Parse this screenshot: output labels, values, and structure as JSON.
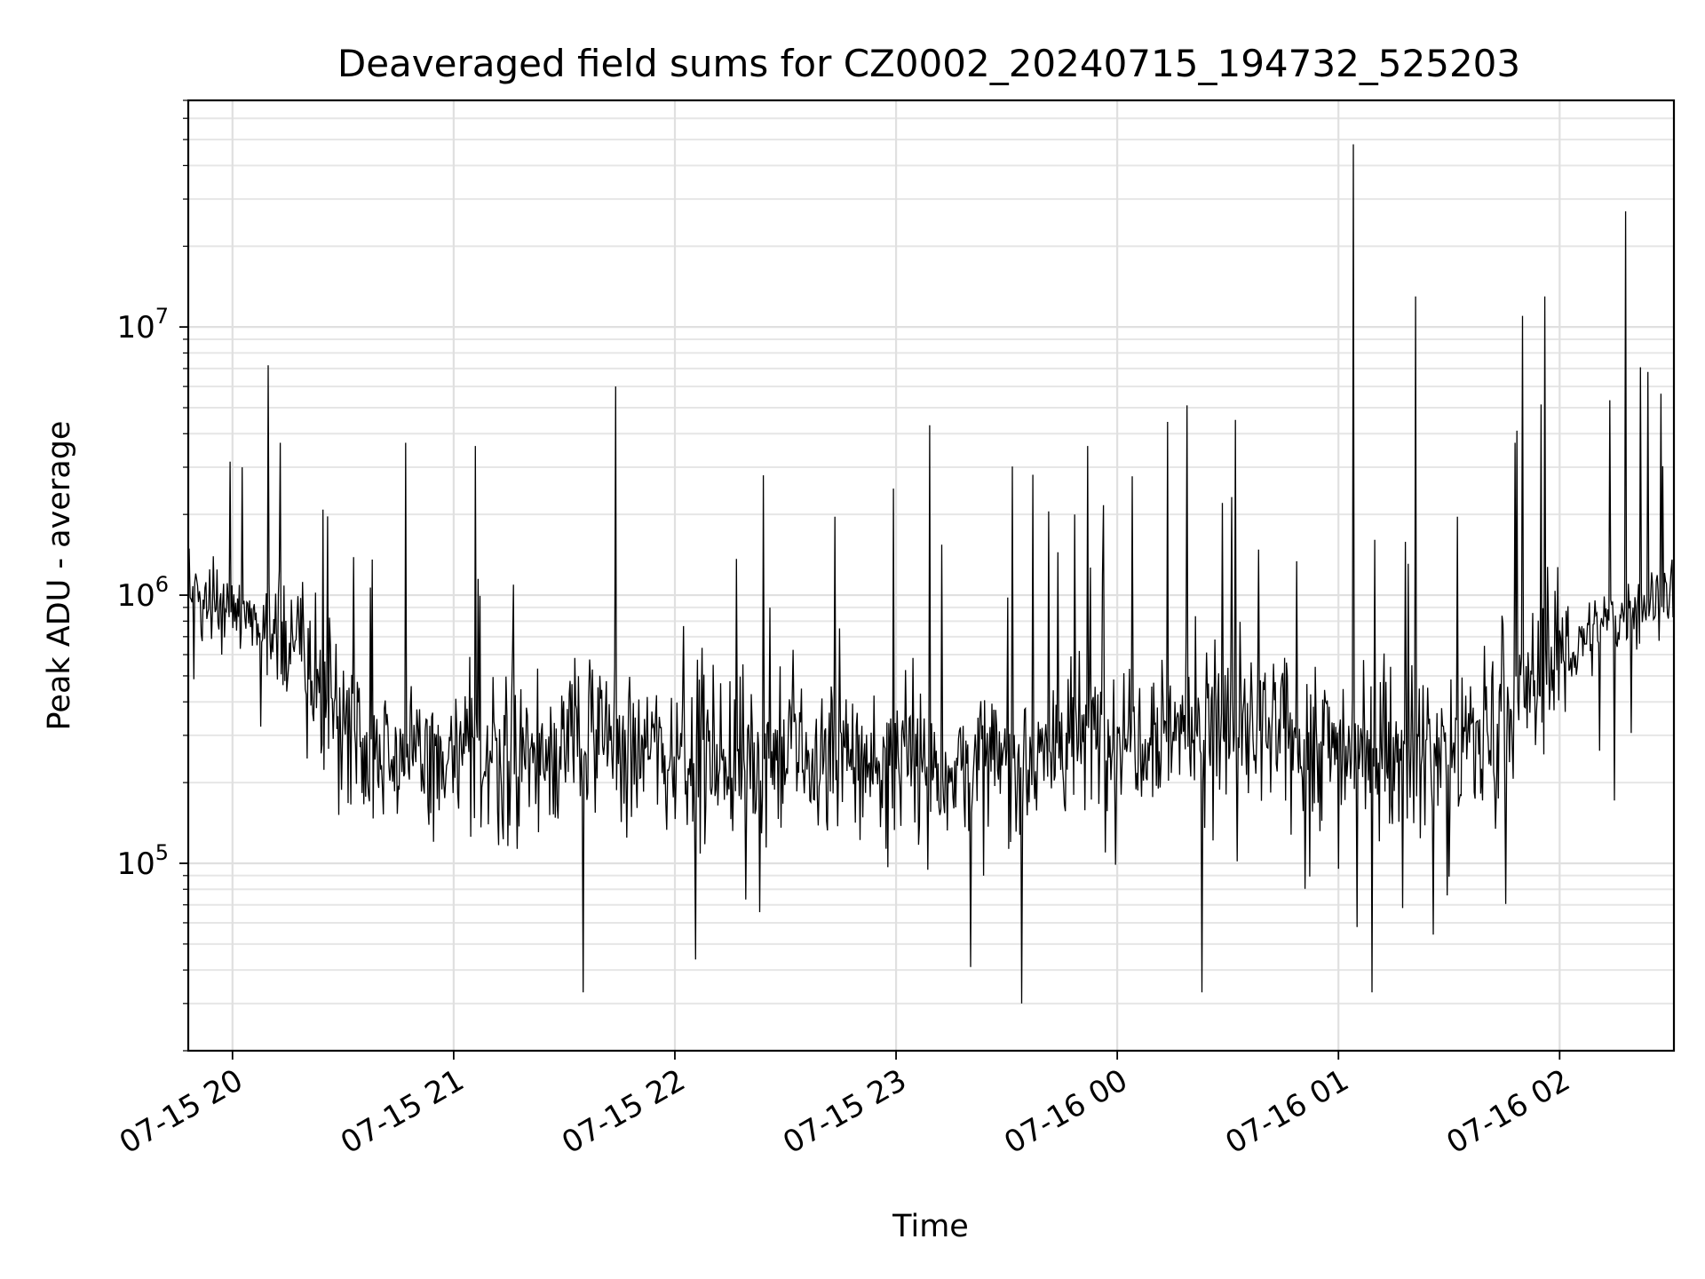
{
  "chart_data": {
    "type": "line",
    "title": "Deaveraged field sums for CZ0002_20240715_194732_525203",
    "xlabel": "Time",
    "ylabel": "Peak ADU - average",
    "yscale": "log",
    "xlim": [
      "2024-07-15 19:48",
      "2024-07-16 02:31"
    ],
    "ylim": [
      20000,
      70000000
    ],
    "grid": "on",
    "x_ticks": [
      {
        "value": "2024-07-15 20:00",
        "label": "07-15 20"
      },
      {
        "value": "2024-07-15 21:00",
        "label": "07-15 21"
      },
      {
        "value": "2024-07-15 22:00",
        "label": "07-15 22"
      },
      {
        "value": "2024-07-15 23:00",
        "label": "07-15 23"
      },
      {
        "value": "2024-07-16 00:00",
        "label": "07-16 00"
      },
      {
        "value": "2024-07-16 01:00",
        "label": "07-16 01"
      },
      {
        "value": "2024-07-16 02:00",
        "label": "07-16 02"
      }
    ],
    "y_ticks": [
      {
        "value": 100000,
        "base": "10",
        "exp": "5"
      },
      {
        "value": 1000000,
        "base": "10",
        "exp": "6"
      },
      {
        "value": 10000000,
        "base": "10",
        "exp": "7"
      }
    ],
    "line_color": "#000000",
    "grid_color": "#e0e0e0",
    "series": [
      {
        "x": [
          "2024-07-15 19:48",
          "2024-07-15 19:52",
          "2024-07-15 19:56",
          "2024-07-15 20:00",
          "2024-07-15 20:04",
          "2024-07-15 20:08",
          "2024-07-15 20:12",
          "2024-07-15 20:16",
          "2024-07-15 20:20",
          "2024-07-15 20:24",
          "2024-07-15 20:28",
          "2024-07-15 20:32",
          "2024-07-15 20:36",
          "2024-07-15 20:40",
          "2024-07-15 20:44",
          "2024-07-15 20:48",
          "2024-07-15 20:52",
          "2024-07-15 20:56",
          "2024-07-15 21:00",
          "2024-07-15 21:04",
          "2024-07-15 21:08",
          "2024-07-15 21:12",
          "2024-07-15 21:16",
          "2024-07-15 21:20",
          "2024-07-15 21:24",
          "2024-07-15 21:28",
          "2024-07-15 21:32",
          "2024-07-15 21:36",
          "2024-07-15 21:40",
          "2024-07-15 21:44",
          "2024-07-15 21:48",
          "2024-07-15 21:52",
          "2024-07-15 21:56",
          "2024-07-15 22:00",
          "2024-07-15 22:04",
          "2024-07-15 22:08",
          "2024-07-15 22:12",
          "2024-07-15 22:16",
          "2024-07-15 22:20",
          "2024-07-15 22:24",
          "2024-07-15 22:28",
          "2024-07-15 22:32",
          "2024-07-15 22:36",
          "2024-07-15 22:40",
          "2024-07-15 22:44",
          "2024-07-15 22:48",
          "2024-07-15 22:52",
          "2024-07-15 22:56",
          "2024-07-15 23:00",
          "2024-07-15 23:04",
          "2024-07-15 23:08",
          "2024-07-15 23:12",
          "2024-07-15 23:16",
          "2024-07-15 23:20",
          "2024-07-15 23:24",
          "2024-07-15 23:28",
          "2024-07-15 23:32",
          "2024-07-15 23:36",
          "2024-07-15 23:40",
          "2024-07-15 23:44",
          "2024-07-15 23:48",
          "2024-07-15 23:52",
          "2024-07-15 23:56",
          "2024-07-16 00:00",
          "2024-07-16 00:04",
          "2024-07-16 00:08",
          "2024-07-16 00:12",
          "2024-07-16 00:16",
          "2024-07-16 00:20",
          "2024-07-16 00:24",
          "2024-07-16 00:28",
          "2024-07-16 00:32",
          "2024-07-16 00:36",
          "2024-07-16 00:40",
          "2024-07-16 00:44",
          "2024-07-16 00:48",
          "2024-07-16 00:52",
          "2024-07-16 00:56",
          "2024-07-16 01:00",
          "2024-07-16 01:04",
          "2024-07-16 01:08",
          "2024-07-16 01:12",
          "2024-07-16 01:16",
          "2024-07-16 01:20",
          "2024-07-16 01:24",
          "2024-07-16 01:28",
          "2024-07-16 01:32",
          "2024-07-16 01:36",
          "2024-07-16 01:40",
          "2024-07-16 01:44",
          "2024-07-16 01:48",
          "2024-07-16 01:52",
          "2024-07-16 01:56",
          "2024-07-16 02:00",
          "2024-07-16 02:04",
          "2024-07-16 02:08",
          "2024-07-16 02:12",
          "2024-07-16 02:16",
          "2024-07-16 02:20",
          "2024-07-16 02:24",
          "2024-07-16 02:28",
          "2024-07-16 02:31"
        ],
        "median": [
          1050000,
          1000000,
          950000,
          900000,
          840000,
          790000,
          720000,
          640000,
          540000,
          440000,
          380000,
          330000,
          300000,
          275000,
          265000,
          255000,
          245000,
          235000,
          240000,
          245000,
          250000,
          255000,
          260000,
          265000,
          270000,
          275000,
          280000,
          285000,
          290000,
          285000,
          280000,
          275000,
          270000,
          265000,
          262000,
          258000,
          255000,
          252000,
          250000,
          248000,
          246000,
          244000,
          242000,
          240000,
          240000,
          238000,
          236000,
          235000,
          235000,
          234000,
          232000,
          230000,
          228000,
          226000,
          225000,
          230000,
          240000,
          250000,
          260000,
          275000,
          290000,
          305000,
          315000,
          320000,
          325000,
          330000,
          330000,
          328000,
          325000,
          320000,
          315000,
          310000,
          305000,
          300000,
          295000,
          290000,
          285000,
          280000,
          275000,
          270000,
          268000,
          266000,
          264000,
          262000,
          262000,
          264000,
          270000,
          285000,
          310000,
          350000,
          400000,
          460000,
          520000,
          580000,
          640000,
          700000,
          760000,
          820000,
          880000,
          940000,
          1000000,
          1050000
        ],
        "peaks": [
          {
            "x": "2024-07-15 20:13",
            "y": 3700000
          },
          {
            "x": "2024-07-15 20:47",
            "y": 3700000
          },
          {
            "x": "2024-07-15 21:06",
            "y": 3600000
          },
          {
            "x": "2024-07-15 21:44",
            "y": 6000000
          },
          {
            "x": "2024-07-15 22:24",
            "y": 2800000
          },
          {
            "x": "2024-07-15 23:09",
            "y": 4300000
          },
          {
            "x": "2024-07-15 23:52",
            "y": 3600000
          },
          {
            "x": "2024-07-16 00:19",
            "y": 5100000
          },
          {
            "x": "2024-07-16 00:32",
            "y": 4500000
          },
          {
            "x": "2024-07-16 01:04",
            "y": 48000000
          },
          {
            "x": "2024-07-16 01:21",
            "y": 13000000
          },
          {
            "x": "2024-07-16 01:50",
            "y": 11000000
          },
          {
            "x": "2024-07-16 01:56",
            "y": 13000000
          },
          {
            "x": "2024-07-16 02:18",
            "y": 27000000
          },
          {
            "x": "2024-07-16 02:24",
            "y": 6800000
          }
        ],
        "dips": [
          {
            "x": "2024-07-15 21:35",
            "y": 33000
          },
          {
            "x": "2024-07-15 23:34",
            "y": 30000
          },
          {
            "x": "2024-07-16 00:23",
            "y": 33000
          },
          {
            "x": "2024-07-16 01:09",
            "y": 33000
          }
        ],
        "samples": 1600
      }
    ]
  }
}
